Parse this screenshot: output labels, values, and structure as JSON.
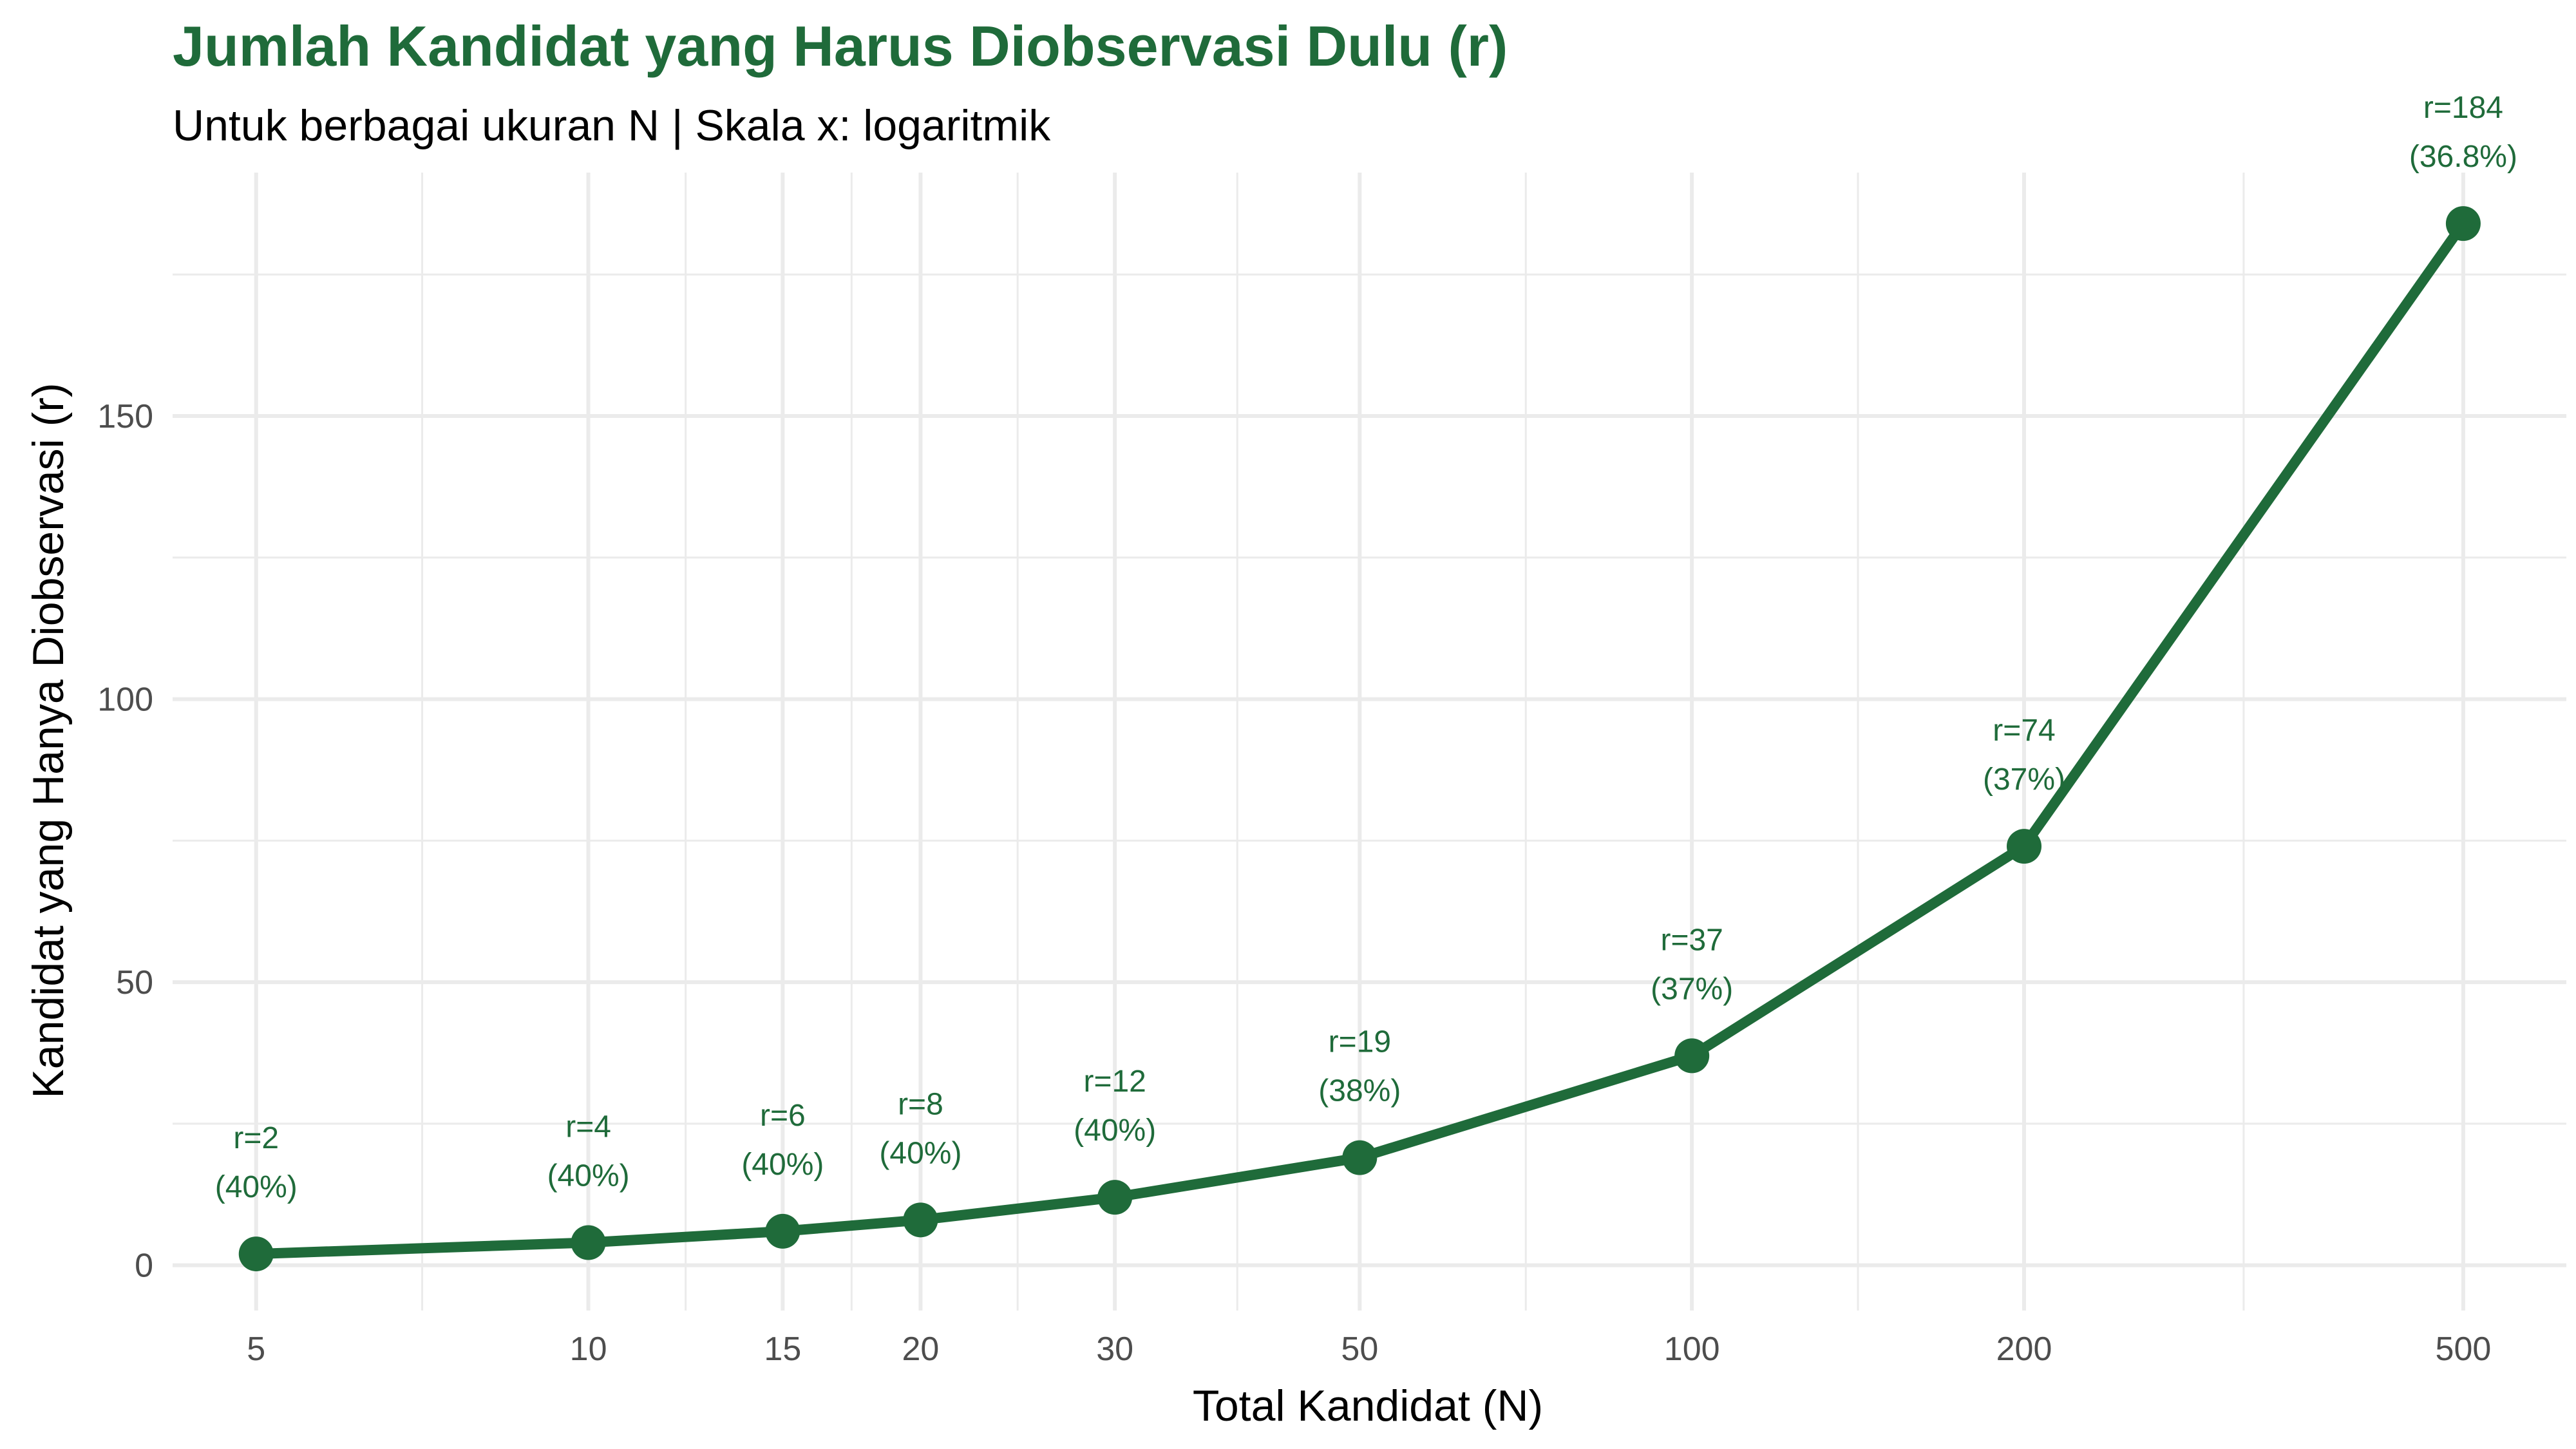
{
  "colors": {
    "accent": "#1f6b3a",
    "grid": "#ebebeb",
    "tick_text": "#4d4d4d",
    "background": "#ffffff"
  },
  "chart_data": {
    "type": "line",
    "title": "Jumlah Kandidat yang Harus Diobservasi Dulu (r)",
    "subtitle": "Untuk berbagai ukuran N | Skala x: logaritmik",
    "xlabel": "Total Kandidat (N)",
    "ylabel": "Kandidat yang Hanya Diobservasi (r)",
    "x_scale": "log",
    "xlim": [
      4.2,
      620
    ],
    "ylim": [
      -8,
      193
    ],
    "x_ticks": [
      5,
      10,
      15,
      20,
      30,
      50,
      100,
      200,
      500
    ],
    "x_tick_labels": [
      "5",
      "10",
      "15",
      "20",
      "30",
      "50",
      "100",
      "200",
      "500"
    ],
    "x_minor_gridlines": [
      7.07,
      12.25,
      17.32,
      24.49,
      38.73,
      70.71,
      141.42,
      316.23
    ],
    "y_ticks": [
      0,
      50,
      100,
      150
    ],
    "y_tick_labels": [
      "0",
      "50",
      "100",
      "150"
    ],
    "y_minor_gridlines": [
      25,
      75,
      125,
      175
    ],
    "grid": true,
    "legend": "none",
    "x": [
      5,
      10,
      15,
      20,
      30,
      50,
      100,
      200,
      500
    ],
    "y": [
      2,
      4,
      6,
      8,
      12,
      19,
      37,
      74,
      184
    ],
    "labels_r": [
      "r=2",
      "r=4",
      "r=6",
      "r=8",
      "r=12",
      "r=19",
      "r=37",
      "r=74",
      "r=184"
    ],
    "labels_pct": [
      "(40%)",
      "(40%)",
      "(40%)",
      "(40%)",
      "(40%)",
      "(38%)",
      "(37%)",
      "(37%)",
      "(36.8%)"
    ]
  }
}
